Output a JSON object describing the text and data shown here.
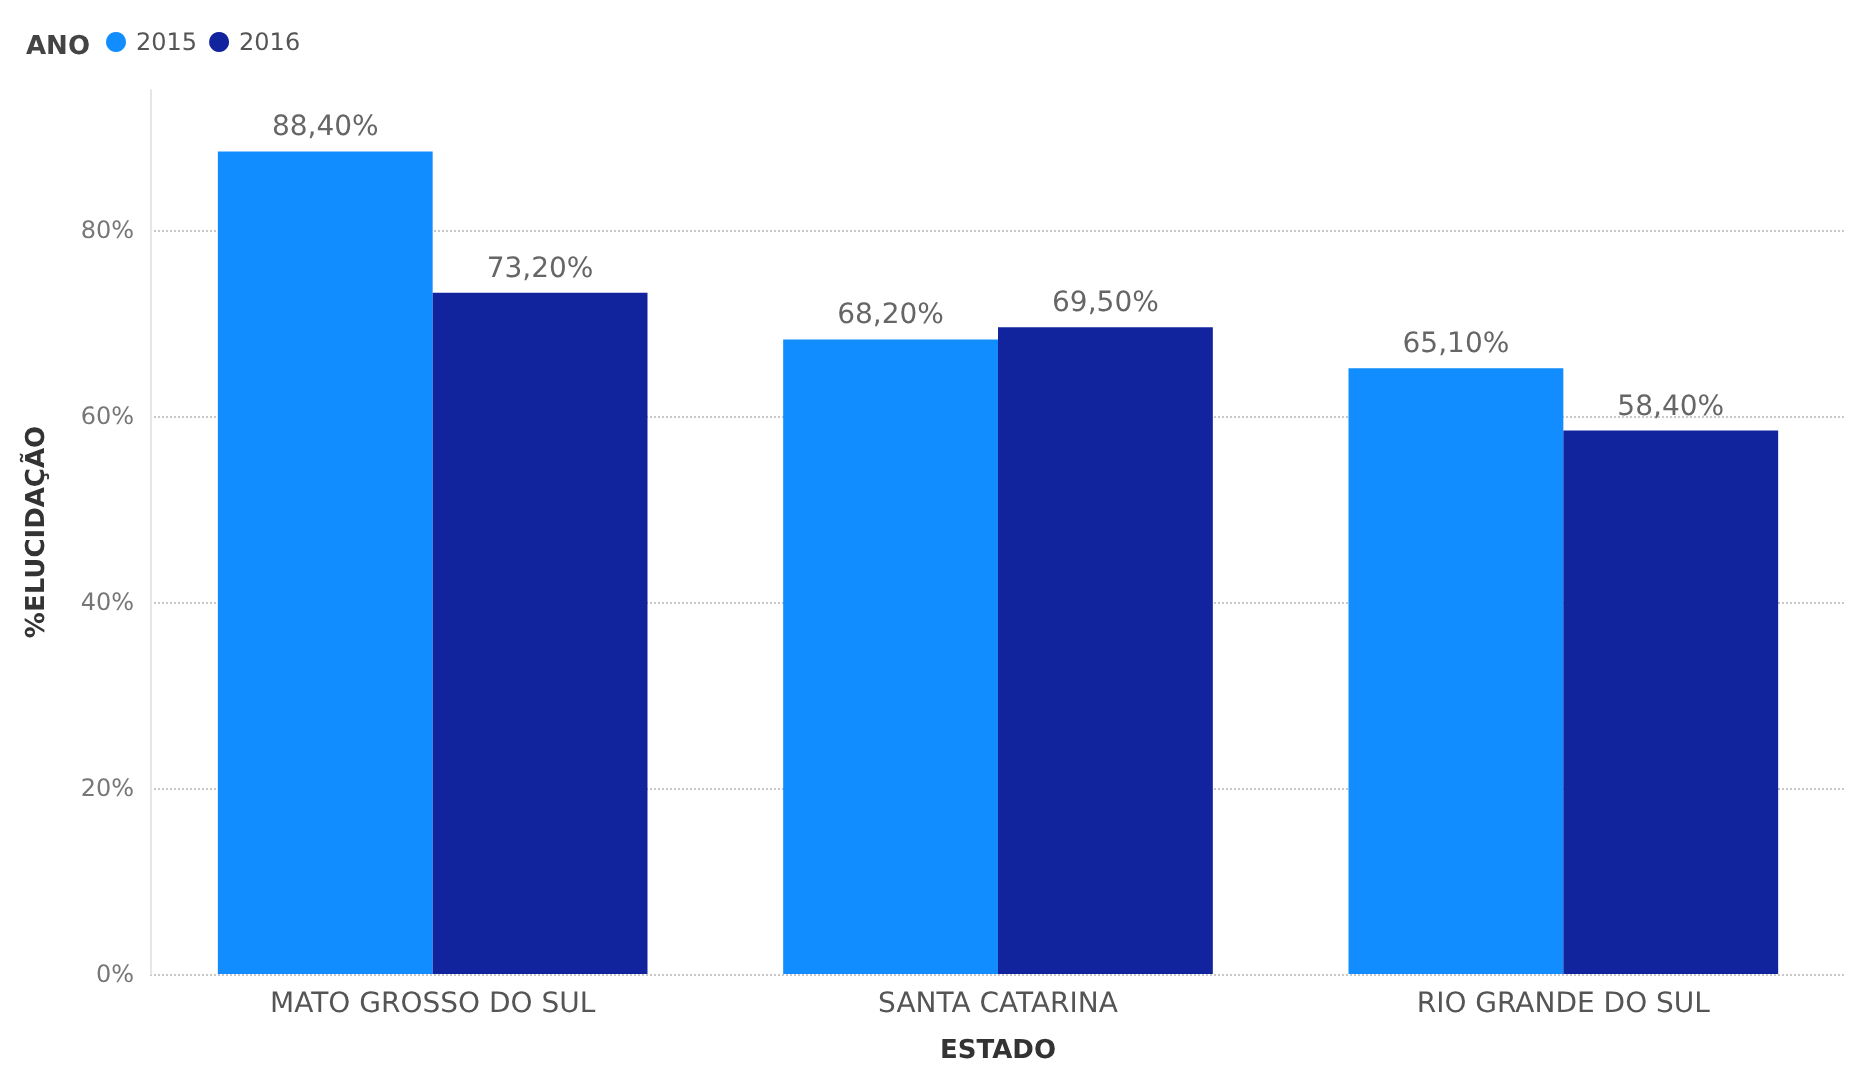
{
  "chart_data": {
    "type": "bar",
    "xlabel": "ESTADO",
    "ylabel": "%ELUCIDAÇÃO",
    "legend_title": "ANO",
    "legend": "top left",
    "grid": "y",
    "line_style": "dotted",
    "categories": [
      "MATO GROSSO DO SUL",
      "SANTA CATARINA",
      "RIO GRANDE DO SUL"
    ],
    "series": [
      {
        "name": "2015",
        "color": "#118dff",
        "values": [
          88.4,
          68.2,
          65.1
        ],
        "value_labels": [
          "88,40%",
          "68,20%",
          "65,10%"
        ]
      },
      {
        "name": "2016",
        "color": "#12239e",
        "values": [
          73.2,
          69.5,
          58.4
        ],
        "value_labels": [
          "73,20%",
          "69,50%",
          "58,40%"
        ]
      }
    ],
    "ylim": [
      0,
      95
    ],
    "yticks": [
      {
        "value": 0,
        "label": "0%"
      },
      {
        "value": 20,
        "label": "20%"
      },
      {
        "value": 40,
        "label": "40%"
      },
      {
        "value": 60,
        "label": "60%"
      },
      {
        "value": 80,
        "label": "80%"
      }
    ]
  }
}
